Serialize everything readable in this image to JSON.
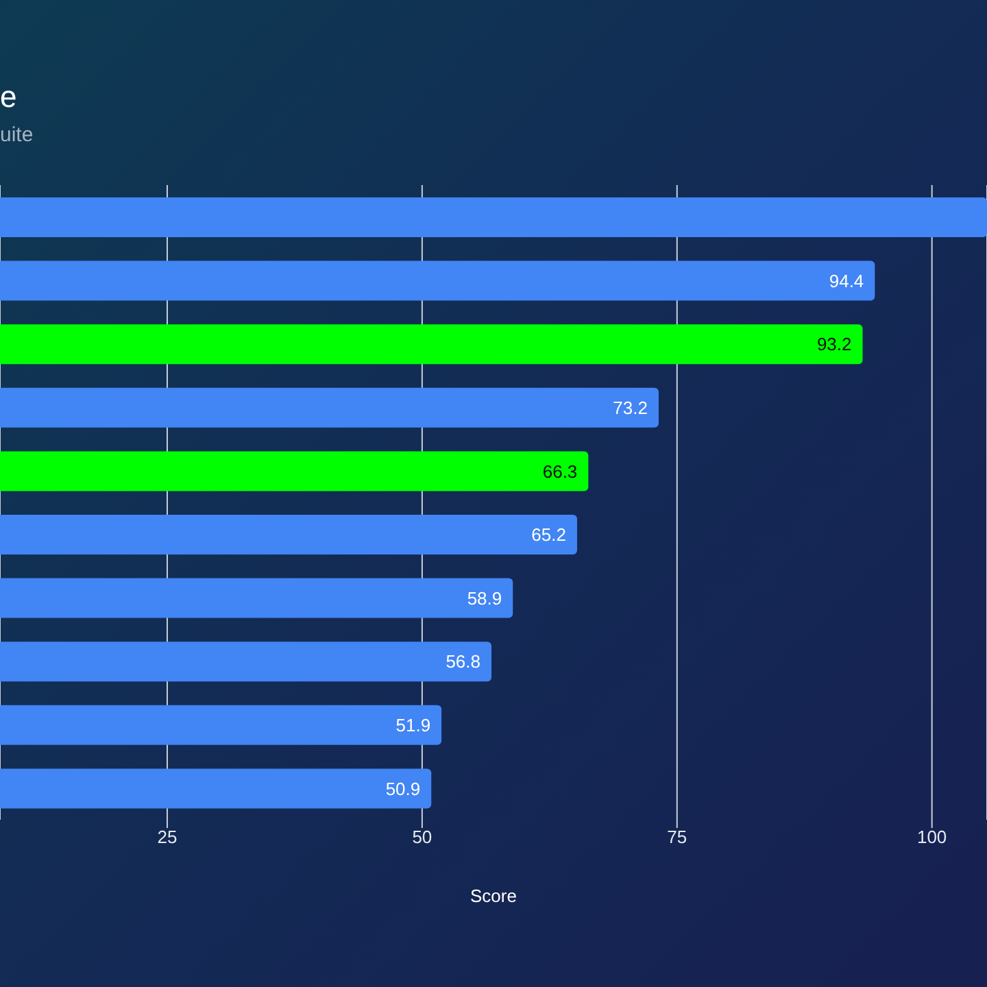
{
  "chart_data": {
    "type": "bar",
    "orientation": "horizontal",
    "title": "e",
    "subtitle": "uite",
    "xlabel": "Score",
    "categories": [
      null,
      null,
      null,
      null,
      null,
      null,
      null,
      null,
      null,
      null
    ],
    "values": [
      105.4,
      94.4,
      93.2,
      73.2,
      66.3,
      65.2,
      58.9,
      56.8,
      51.9,
      50.9
    ],
    "colors": [
      "#4285f4",
      "#4285f4",
      "#00ff00",
      "#4285f4",
      "#00ff00",
      "#4285f4",
      "#4285f4",
      "#4285f4",
      "#4285f4",
      "#4285f4"
    ],
    "value_labels": [
      null,
      "94.4",
      "93.2",
      "73.2",
      "66.3",
      "65.2",
      "58.9",
      "56.8",
      "51.9",
      "50.9"
    ],
    "xlim": [
      8.6,
      105.4
    ],
    "xticks": [
      25,
      50,
      75,
      100
    ],
    "grid": "x",
    "tick_labels": "x"
  }
}
